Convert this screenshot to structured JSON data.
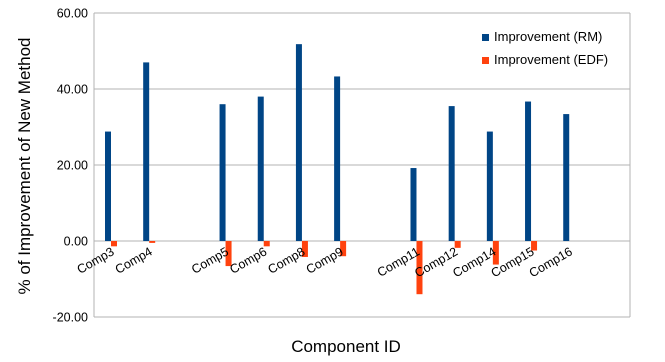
{
  "chart_data": {
    "type": "bar",
    "title": "",
    "xlabel": "Component ID",
    "ylabel": "% of Improvement of New Method",
    "ylim": [
      -20,
      60
    ],
    "yticks": [
      -20,
      0,
      20,
      40,
      60
    ],
    "ytick_labels": [
      "-20.00",
      "0.00",
      "20.00",
      "40.00",
      "60.00"
    ],
    "grid": "horizontal",
    "legend_position": "top-right",
    "slot_count": 14,
    "categories": [
      {
        "label": "Comp3",
        "slot": 0
      },
      {
        "label": "Comp4",
        "slot": 1
      },
      {
        "label": "Comp5",
        "slot": 3
      },
      {
        "label": "Comp6",
        "slot": 4
      },
      {
        "label": "Comp8",
        "slot": 5
      },
      {
        "label": "Comp9",
        "slot": 6
      },
      {
        "label": "Comp11",
        "slot": 8
      },
      {
        "label": "Comp12",
        "slot": 9
      },
      {
        "label": "Comp14",
        "slot": 10
      },
      {
        "label": "Comp15",
        "slot": 11
      },
      {
        "label": "Comp16",
        "slot": 12
      }
    ],
    "series": [
      {
        "name": "Improvement  (RM)",
        "color": "#004586",
        "values": [
          28.8,
          47.0,
          36.0,
          38.0,
          51.8,
          43.3,
          19.2,
          35.5,
          28.8,
          36.7,
          33.4
        ]
      },
      {
        "name": "Improvement  (EDF)",
        "color": "#ff420e",
        "values": [
          -1.4,
          -0.5,
          -6.6,
          -1.4,
          -4.2,
          -4.0,
          -14.0,
          -1.8,
          -6.2,
          -2.5,
          0
        ]
      }
    ]
  }
}
